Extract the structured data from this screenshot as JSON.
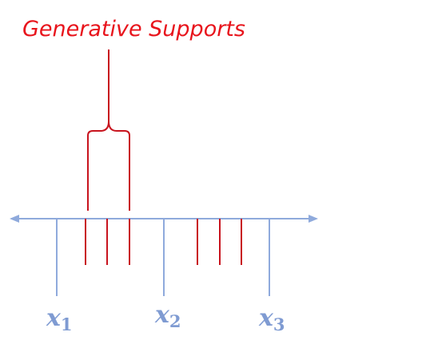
{
  "title": "Generative Supports",
  "points": [
    {
      "var": "x",
      "sub": "1"
    },
    {
      "var": "x",
      "sub": "2"
    },
    {
      "var": "x",
      "sub": "3"
    }
  ],
  "colors": {
    "title": "#e8141c",
    "support": "#c8141e",
    "axis": "#8faadc",
    "label": "#7f9bd2"
  }
}
